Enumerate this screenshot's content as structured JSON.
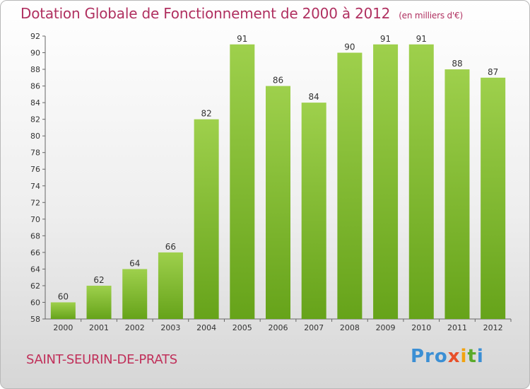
{
  "header": {
    "title": "Dotation Globale de Fonctionnement de 2000 à 2012",
    "unit": "(en milliers d'€)"
  },
  "commune": "SAINT-SEURIN-DE-PRATS",
  "logo": {
    "text": "Proxiti"
  },
  "colors": {
    "bar_light": "#9ed04c",
    "bar_dark": "#66a31a",
    "title": "#b03060"
  },
  "chart_data": {
    "type": "bar",
    "title": "Dotation Globale de Fonctionnement de 2000 à 2012",
    "subtitle": "(en milliers d'€)",
    "xlabel": "",
    "ylabel": "",
    "categories": [
      "2000",
      "2001",
      "2002",
      "2003",
      "2004",
      "2005",
      "2006",
      "2007",
      "2008",
      "2009",
      "2010",
      "2011",
      "2012"
    ],
    "values": [
      60,
      62,
      64,
      66,
      82,
      91,
      86,
      84,
      90,
      91,
      91,
      88,
      87
    ],
    "ylim": [
      58,
      92
    ],
    "yticks": [
      58,
      60,
      62,
      64,
      66,
      68,
      70,
      72,
      74,
      76,
      78,
      80,
      82,
      84,
      86,
      88,
      90,
      92
    ],
    "grid": false,
    "legend": "none"
  }
}
